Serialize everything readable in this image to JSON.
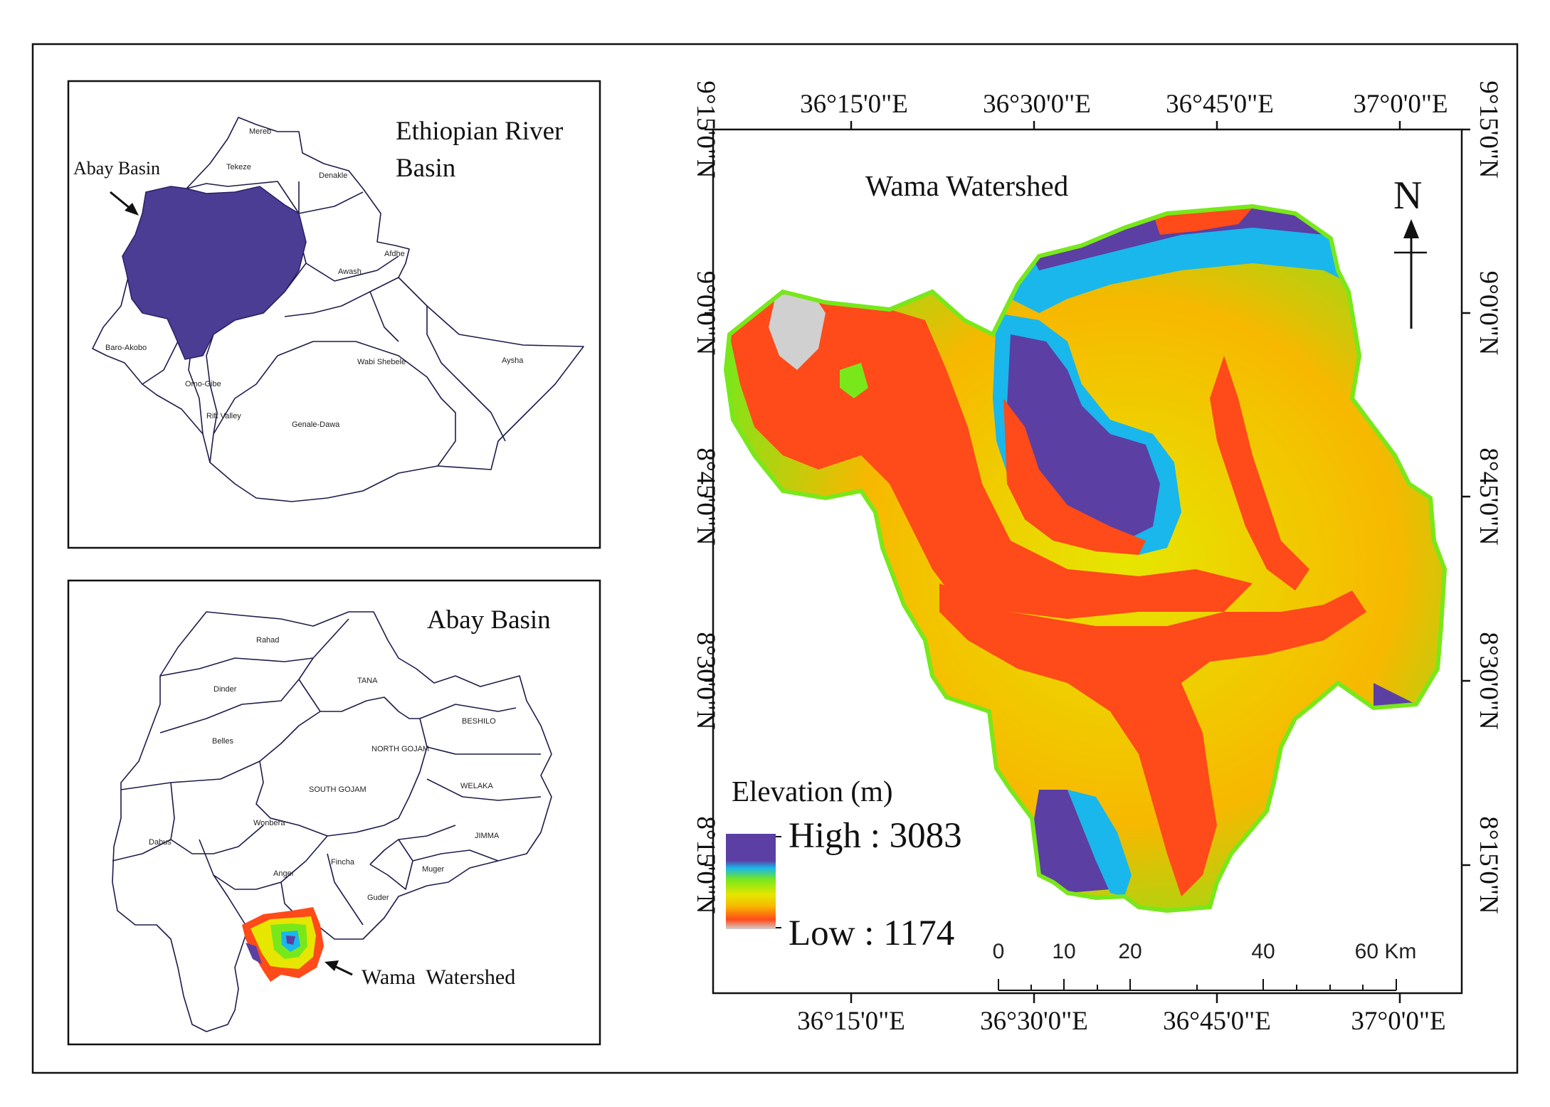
{
  "colors": {
    "abay_fill": "#4b3d94",
    "ramp": [
      "#5b3fa3",
      "#19b7ec",
      "#78e81b",
      "#e6e600",
      "#f7b800",
      "#ff4a1a",
      "#d0d0d0"
    ]
  },
  "ethiopia_map": {
    "title_line1": "Ethiopian River",
    "title_line2": "Basin",
    "pointer_label": "Abay Basin",
    "basins": [
      "Mereb",
      "Tekeze",
      "Denakle",
      "Afdhe",
      "Awash",
      "Baro-Akobo",
      "Omo-Gibe",
      "Rift Valley",
      "Wabi Shebele",
      "Aysha",
      "Genale-Dawa"
    ]
  },
  "abay_map": {
    "title": "Abay Basin",
    "pointer_label": "Wama  Watershed",
    "subbasins": [
      "Rahad",
      "Dinder",
      "TANA",
      "BESHILO",
      "NORTH GOJAM",
      "Belles",
      "SOUTH GOJAM",
      "WELAKA",
      "Wonbera",
      "JIMMA",
      "Dabus",
      "Fincha",
      "Anger",
      "Muger",
      "Guder"
    ]
  },
  "main_map": {
    "title": "Wama Watershed",
    "north_label": "N",
    "lon_labels": [
      "36°15'0\"E",
      "36°30'0\"E",
      "36°45'0\"E",
      "37°0'0\"E"
    ],
    "lat_labels": [
      "9°15'0\"N",
      "9°0'0\"N",
      "8°45'0\"N",
      "8°30'0\"N",
      "8°15'0\"N"
    ],
    "legend": {
      "title": "Elevation (m)",
      "high_label": "High : 3083",
      "low_label": "Low : 1174",
      "high_value": 3083,
      "low_value": 1174
    },
    "scale_bar": {
      "labels": [
        "0",
        "10",
        "20",
        "40",
        "60 Km"
      ]
    }
  }
}
